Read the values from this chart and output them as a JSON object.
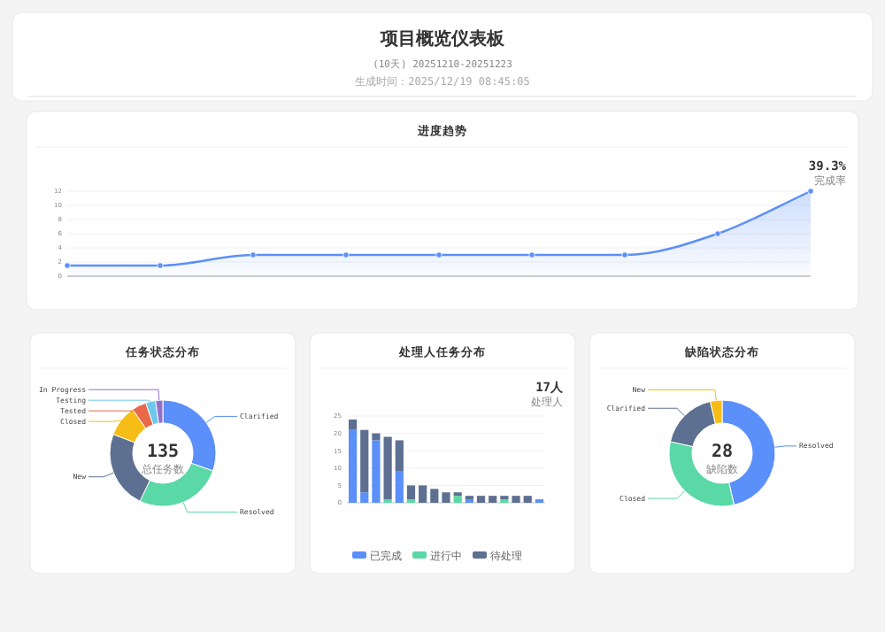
{
  "chart_data": [
    {
      "type": "other",
      "title": "项目概览仪表板",
      "subtitle": "(10天) 20251210-20251223",
      "annotations": [
        "生成时间：2025/12/19 08:45:05"
      ]
    },
    {
      "type": "area",
      "title": "进度趋势",
      "categories": [
        null,
        null,
        null,
        null,
        null,
        null,
        null,
        null,
        null
      ],
      "series": [
        {
          "color": "#5b8ff9",
          "values": [
            1.5,
            1.5,
            3,
            3,
            3,
            3,
            3,
            6,
            12
          ]
        }
      ],
      "ylim": [
        0,
        12
      ],
      "yticks": [
        0,
        2,
        4,
        6,
        8,
        10,
        12
      ],
      "grid": "y",
      "marker": "circle",
      "annotations": [
        "39.3%",
        "完成率"
      ]
    },
    {
      "type": "donut",
      "title": "任务状态分布",
      "categories": [
        "Clarified",
        "Resolved",
        "New",
        "Closed",
        "Tested",
        "Testing",
        "In Progress"
      ],
      "values": [
        30.4,
        26.7,
        23.7,
        9.6,
        4.4,
        3.0,
        2.2
      ],
      "colors": [
        "#5b8ff9",
        "#5ad8a6",
        "#5d7092",
        "#f6bd16",
        "#e8684a",
        "#6dc8ec",
        "#9270ca"
      ],
      "annotations": [
        "135",
        "总任务数"
      ]
    },
    {
      "type": "bar",
      "title": "处理人任务分布",
      "stacked": true,
      "categories": [
        null,
        null,
        null,
        null,
        null,
        null,
        null,
        null,
        null,
        null,
        null,
        null,
        null,
        null,
        null,
        null,
        null
      ],
      "series": [
        {
          "name": "已完成",
          "color": "#5b8ff9",
          "values": [
            21,
            3,
            18,
            0,
            9,
            0,
            0,
            0,
            0,
            0,
            1,
            0,
            0,
            0,
            0,
            0,
            1
          ]
        },
        {
          "name": "进行中",
          "color": "#5ad8a6",
          "values": [
            0,
            0,
            0,
            1,
            0,
            1,
            0,
            0,
            0,
            2,
            0,
            0,
            0,
            1,
            0,
            0,
            0
          ]
        },
        {
          "name": "待处理",
          "color": "#5d7092",
          "values": [
            3,
            18,
            2,
            18,
            9,
            4,
            5,
            4,
            3,
            1,
            1,
            2,
            2,
            1,
            2,
            2,
            0
          ]
        }
      ],
      "ylim": [
        0,
        25
      ],
      "yticks": [
        0,
        5,
        10,
        15,
        20,
        25
      ],
      "grid": "y",
      "legend": "bottom",
      "annotations": [
        "17人",
        "处理人"
      ]
    },
    {
      "type": "donut",
      "title": "缺陷状态分布",
      "categories": [
        "Resolved",
        "Closed",
        "Clarified",
        "New"
      ],
      "values": [
        46.4,
        32.1,
        17.9,
        3.6
      ],
      "colors": [
        "#5b8ff9",
        "#5ad8a6",
        "#5d7092",
        "#f6bd16"
      ],
      "annotations": [
        "28",
        "缺陷数"
      ]
    }
  ]
}
